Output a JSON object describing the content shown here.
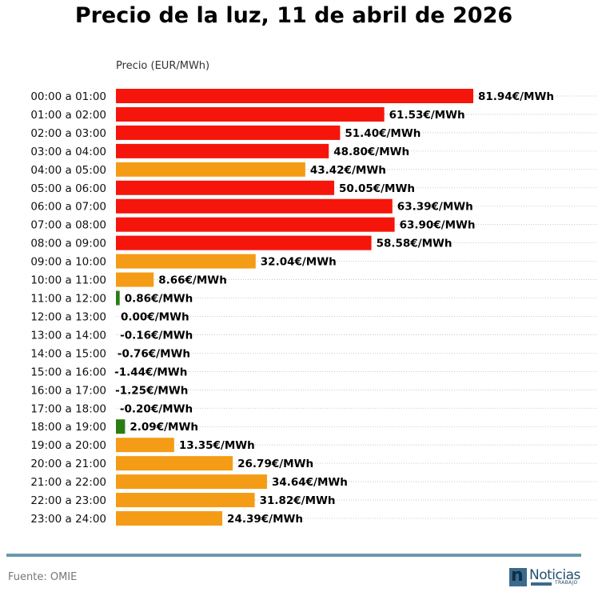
{
  "title": "Precio de la luz, 11 de abril de 2026",
  "source": "Fuente: OMIE",
  "logo": {
    "name": "Noticias",
    "sub": "TRABAJO",
    "mark": "n"
  },
  "colors": {
    "high": "#f5150a",
    "mid": "#f49c16",
    "low": "#2a7d12",
    "divider": "#6a99ae"
  },
  "chart_data": {
    "type": "bar",
    "orientation": "horizontal",
    "title": "Precio de la luz, 11 de abril de 2026",
    "xlabel": "Precio (EUR/MWh)",
    "ylabel": "",
    "value_suffix": "€/MWh",
    "grid": "dotted horizontal per row",
    "xlim": [
      0,
      110
    ],
    "categories": [
      "00:00 a 01:00",
      "01:00 a 02:00",
      "02:00 a 03:00",
      "03:00 a 04:00",
      "04:00 a 05:00",
      "05:00 a 06:00",
      "06:00 a 07:00",
      "07:00 a 08:00",
      "08:00 a 09:00",
      "09:00 a 10:00",
      "10:00 a 11:00",
      "11:00 a 12:00",
      "12:00 a 13:00",
      "13:00 a 14:00",
      "14:00 a 15:00",
      "15:00 a 16:00",
      "16:00 a 17:00",
      "17:00 a 18:00",
      "18:00 a 19:00",
      "19:00 a 20:00",
      "20:00 a 21:00",
      "21:00 a 22:00",
      "22:00 a 23:00",
      "23:00 a 24:00"
    ],
    "values": [
      81.94,
      61.53,
      51.4,
      48.8,
      43.42,
      50.05,
      63.39,
      63.9,
      58.58,
      32.04,
      8.66,
      0.86,
      0.0,
      -0.16,
      -0.76,
      -1.44,
      -1.25,
      -0.2,
      2.09,
      13.35,
      26.79,
      34.64,
      31.82,
      24.39
    ],
    "labels": [
      "81.94€/MWh",
      "61.53€/MWh",
      "51.40€/MWh",
      "48.80€/MWh",
      "43.42€/MWh",
      "50.05€/MWh",
      "63.39€/MWh",
      "63.90€/MWh",
      "58.58€/MWh",
      "32.04€/MWh",
      "8.66€/MWh",
      "0.86€/MWh",
      "0.00€/MWh",
      "-0.16€/MWh",
      "-0.76€/MWh",
      "-1.44€/MWh",
      "-1.25€/MWh",
      "-0.20€/MWh",
      "2.09€/MWh",
      "13.35€/MWh",
      "26.79€/MWh",
      "34.64€/MWh",
      "31.82€/MWh",
      "24.39€/MWh"
    ],
    "bar_colors": [
      "high",
      "high",
      "high",
      "high",
      "mid",
      "high",
      "high",
      "high",
      "high",
      "mid",
      "mid",
      "low",
      "low",
      "low",
      "low",
      "low",
      "low",
      "low",
      "low",
      "mid",
      "mid",
      "mid",
      "mid",
      "mid"
    ]
  }
}
